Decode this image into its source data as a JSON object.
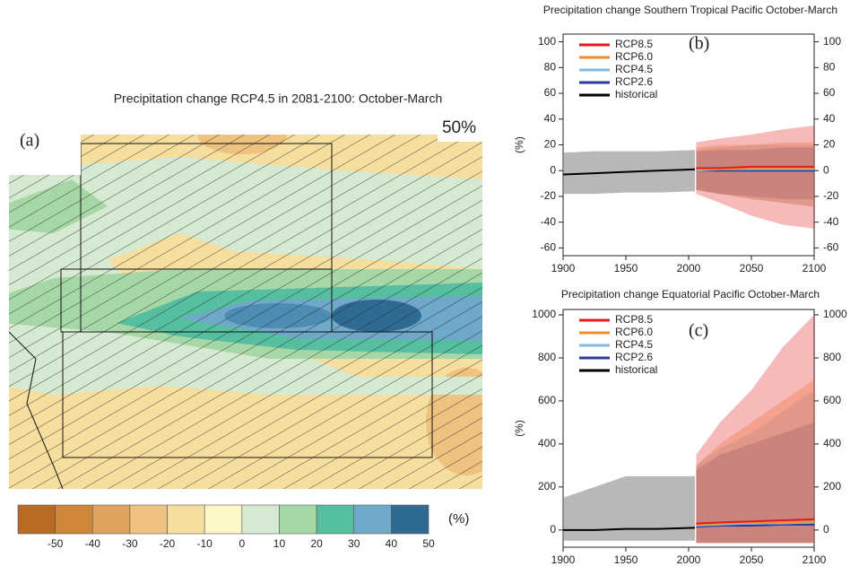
{
  "chart_data": [
    {
      "type": "map",
      "title": "Precipitation change RCP4.5 in 2081-2100: October-March",
      "panel_label": "(a)",
      "annotation": "50%",
      "colorbar": {
        "label": "(%)",
        "colors": [
          "#b86b25",
          "#cf863a",
          "#e0a460",
          "#eec27f",
          "#f6de9e",
          "#fdf6c6",
          "#d5ead0",
          "#a6d7a6",
          "#55bfa0",
          "#6fa8c8",
          "#2f6a92"
        ],
        "ticks": [
          -50,
          -40,
          -30,
          -20,
          -10,
          0,
          10,
          20,
          30,
          40,
          50
        ]
      }
    },
    {
      "type": "line",
      "title": "Precipitation change Southern Tropical Pacific October-March",
      "panel_label": "(b)",
      "ylabel": "(%)",
      "xlim": [
        1900,
        2100
      ],
      "xticks": [
        1900,
        1950,
        2000,
        2050,
        2100
      ],
      "ylim": [
        -66,
        106
      ],
      "yticks": [
        -60,
        -40,
        -20,
        0,
        20,
        40,
        60,
        80,
        100
      ],
      "y2lim": [
        -66,
        106
      ],
      "y2ticks": [
        -60,
        -40,
        -20,
        0,
        20,
        40,
        60,
        80,
        100
      ],
      "series": [
        {
          "name": "RCP8.5",
          "color": "#e41a1c",
          "axis": "y",
          "x": [
            2006,
            2025,
            2050,
            2075,
            2100
          ],
          "values": [
            2,
            2,
            3,
            3,
            3
          ],
          "lower": [
            -18,
            -25,
            -35,
            -42,
            -45
          ],
          "upper": [
            22,
            25,
            28,
            32,
            35
          ]
        },
        {
          "name": "RCP6.0",
          "color": "#f28e2b",
          "x": [
            2006,
            2025,
            2050,
            2075,
            2100
          ],
          "values": [
            1,
            1,
            2,
            2,
            2
          ],
          "lower": [
            -15,
            -18,
            -22,
            -25,
            -28
          ],
          "upper": [
            18,
            20,
            20,
            22,
            22
          ]
        },
        {
          "name": "RCP4.5",
          "color": "#7fb8e0",
          "x": [
            2006,
            2025,
            2050,
            2075,
            2100
          ],
          "values": [
            0,
            1,
            1,
            1,
            1
          ],
          "lower": [
            -15,
            -18,
            -22,
            -25,
            -28
          ],
          "upper": [
            16,
            18,
            20,
            20,
            20
          ]
        },
        {
          "name": "RCP2.6",
          "color": "#2b3a9a",
          "x": [
            2006,
            2025,
            2050,
            2075,
            2100
          ],
          "values": [
            0,
            0,
            0,
            0,
            0
          ],
          "lower": [
            -15,
            -18,
            -20,
            -22,
            -22
          ],
          "upper": [
            15,
            16,
            16,
            18,
            18
          ]
        },
        {
          "name": "historical",
          "color": "#000000",
          "x": [
            1900,
            1925,
            1950,
            1975,
            2005
          ],
          "values": [
            -3,
            -2,
            -1,
            0,
            1
          ],
          "lower": [
            -18,
            -18,
            -17,
            -17,
            -16
          ],
          "upper": [
            14,
            15,
            15,
            15,
            16
          ]
        }
      ]
    },
    {
      "type": "line",
      "title": "Precipitation change Equatorial Pacific October-March",
      "panel_label": "(c)",
      "ylabel": "(%)",
      "xlim": [
        1900,
        2100
      ],
      "xticks": [
        1900,
        1950,
        2000,
        2050,
        2100
      ],
      "ylim": [
        -80,
        1025
      ],
      "yticks": [
        0,
        200,
        400,
        600,
        800,
        1000
      ],
      "y2lim": [
        -80,
        1025
      ],
      "y2ticks": [
        0,
        200,
        400,
        600,
        800,
        1000
      ],
      "series": [
        {
          "name": "RCP8.5",
          "color": "#e41a1c",
          "x": [
            2006,
            2025,
            2050,
            2075,
            2100
          ],
          "values": [
            30,
            35,
            40,
            45,
            50
          ],
          "lower": [
            -60,
            -60,
            -60,
            -60,
            -60
          ],
          "upper": [
            350,
            500,
            650,
            850,
            1000
          ]
        },
        {
          "name": "RCP6.0",
          "color": "#f28e2b",
          "x": [
            2006,
            2025,
            2050,
            2075,
            2100
          ],
          "values": [
            25,
            30,
            35,
            35,
            40
          ],
          "lower": [
            -60,
            -60,
            -60,
            -60,
            -60
          ],
          "upper": [
            300,
            400,
            500,
            600,
            700
          ]
        },
        {
          "name": "RCP4.5",
          "color": "#7fb8e0",
          "x": [
            2006,
            2025,
            2050,
            2075,
            2100
          ],
          "values": [
            20,
            25,
            30,
            30,
            35
          ],
          "lower": [
            -60,
            -60,
            -60,
            -60,
            -60
          ],
          "upper": [
            300,
            380,
            450,
            550,
            650
          ]
        },
        {
          "name": "RCP2.6",
          "color": "#2b3a9a",
          "x": [
            2006,
            2025,
            2050,
            2075,
            2100
          ],
          "values": [
            15,
            20,
            20,
            25,
            25
          ],
          "lower": [
            -60,
            -60,
            -60,
            -60,
            -60
          ],
          "upper": [
            280,
            350,
            400,
            450,
            500
          ]
        },
        {
          "name": "historical",
          "color": "#000000",
          "x": [
            1900,
            1925,
            1950,
            1975,
            2005
          ],
          "values": [
            0,
            0,
            5,
            5,
            10
          ],
          "lower": [
            -50,
            -50,
            -50,
            -50,
            -50
          ],
          "upper": [
            150,
            200,
            250,
            250,
            250
          ]
        }
      ]
    }
  ]
}
